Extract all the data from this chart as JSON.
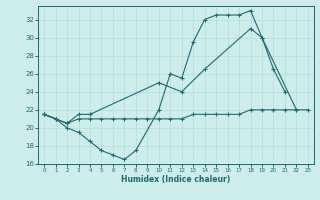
{
  "xlabel": "Humidex (Indice chaleur)",
  "bg_color": "#ceecea",
  "line_color": "#1a6b6b",
  "grid_color": "#b8dbd8",
  "xlim": [
    -0.5,
    23.5
  ],
  "ylim": [
    16,
    33.5
  ],
  "yticks": [
    16,
    18,
    20,
    22,
    24,
    26,
    28,
    30,
    32
  ],
  "xticks": [
    0,
    1,
    2,
    3,
    4,
    5,
    6,
    7,
    8,
    9,
    10,
    11,
    12,
    13,
    14,
    15,
    16,
    17,
    18,
    19,
    20,
    21,
    22,
    23
  ],
  "line1_data": [
    [
      0,
      21.5
    ],
    [
      1,
      21.0
    ],
    [
      2,
      20.0
    ],
    [
      3,
      19.5
    ],
    [
      4,
      18.5
    ],
    [
      5,
      17.5
    ],
    [
      6,
      17.0
    ],
    [
      7,
      16.5
    ],
    [
      8,
      17.5
    ],
    [
      10,
      22.0
    ],
    [
      11,
      26.0
    ],
    [
      12,
      25.5
    ],
    [
      13,
      29.5
    ],
    [
      14,
      32.0
    ],
    [
      15,
      32.5
    ],
    [
      16,
      32.5
    ],
    [
      17,
      32.5
    ],
    [
      18,
      33.0
    ],
    [
      19,
      30.0
    ],
    [
      20,
      26.5
    ],
    [
      21,
      24.0
    ]
  ],
  "line2_data": [
    [
      0,
      21.5
    ],
    [
      1,
      21.0
    ],
    [
      2,
      20.5
    ],
    [
      3,
      21.5
    ],
    [
      4,
      21.5
    ],
    [
      10,
      25.0
    ],
    [
      12,
      24.0
    ],
    [
      14,
      26.5
    ],
    [
      18,
      31.0
    ],
    [
      19,
      30.0
    ],
    [
      22,
      22.0
    ]
  ],
  "line3_data": [
    [
      0,
      21.5
    ],
    [
      1,
      21.0
    ],
    [
      2,
      20.5
    ],
    [
      3,
      21.0
    ],
    [
      4,
      21.0
    ],
    [
      5,
      21.0
    ],
    [
      6,
      21.0
    ],
    [
      7,
      21.0
    ],
    [
      8,
      21.0
    ],
    [
      9,
      21.0
    ],
    [
      10,
      21.0
    ],
    [
      11,
      21.0
    ],
    [
      12,
      21.0
    ],
    [
      13,
      21.5
    ],
    [
      14,
      21.5
    ],
    [
      15,
      21.5
    ],
    [
      16,
      21.5
    ],
    [
      17,
      21.5
    ],
    [
      18,
      22.0
    ],
    [
      19,
      22.0
    ],
    [
      20,
      22.0
    ],
    [
      21,
      22.0
    ],
    [
      22,
      22.0
    ],
    [
      23,
      22.0
    ]
  ]
}
